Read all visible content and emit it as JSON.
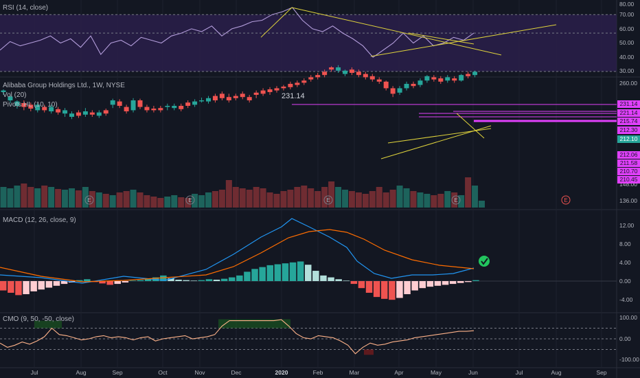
{
  "colors": {
    "up": "#26a69a",
    "down": "#ef5350",
    "trend": "#e0d43c",
    "pivot": "#e040fb",
    "macd": "#2196f3",
    "signal": "#ff6d00",
    "rsi": "#b39ddb",
    "cmo": "#ffb38a"
  },
  "months": [
    "Jul",
    "Aug",
    "Sep",
    "Oct",
    "Nov",
    "Dec",
    "2020",
    "Feb",
    "Mar",
    "Apr",
    "May",
    "Jun",
    "Jul",
    "Aug",
    "Sep"
  ],
  "rsi": {
    "title": "RSI (14, close)",
    "ticks": [
      "80.00",
      "70.00",
      "60.00",
      "50.00",
      "40.00",
      "30.00"
    ],
    "values": [
      45,
      51,
      48,
      50,
      52,
      55,
      50,
      53,
      47,
      55,
      42,
      50,
      52,
      48,
      54,
      52,
      50,
      55,
      57,
      60,
      58,
      62,
      55,
      60,
      62,
      65,
      66,
      70,
      72,
      75,
      66,
      60,
      58,
      62,
      57,
      53,
      48,
      40,
      45,
      50,
      57,
      50,
      55,
      48,
      50,
      54,
      52,
      57
    ]
  },
  "price": {
    "title": "Alibaba Group Holdings Ltd., 1W, NYSE",
    "vol_title": "Vol (20)",
    "pivots_title": "Pivots HL (10, 10)",
    "peak_label": "231.14",
    "ticks": [
      "260.00",
      "148.00",
      "136.00"
    ],
    "tags": [
      "231.14",
      "221.14",
      "215.74",
      "212.30",
      "212.10",
      "212.06",
      "211.58",
      "210.70",
      "210.45"
    ],
    "earnings_marker": "E"
  },
  "macd": {
    "title": "MACD (12, 26, close, 9)",
    "ticks": [
      "12.00",
      "8.00",
      "4.00",
      "0.00",
      "-4.00"
    ]
  },
  "cmo": {
    "title": "CMO (9, 50, -50, close)",
    "ticks": [
      "100.00",
      "0.00",
      "-100.00"
    ],
    "values": [
      -20,
      -40,
      -30,
      -15,
      -25,
      -10,
      10,
      50,
      20,
      15,
      5,
      -5,
      0,
      10,
      15,
      5,
      10,
      5,
      -5,
      5,
      10,
      -10,
      0,
      5,
      10,
      15,
      0,
      5,
      10,
      20,
      60,
      85,
      85,
      85,
      85,
      85,
      85,
      85,
      90,
      60,
      25,
      5,
      0,
      15,
      10,
      5,
      -10,
      -30,
      -70,
      -40,
      -20,
      -30,
      -25,
      -15,
      -10,
      -5,
      5,
      10,
      15,
      20,
      25,
      30,
      35,
      35,
      38
    ]
  }
}
